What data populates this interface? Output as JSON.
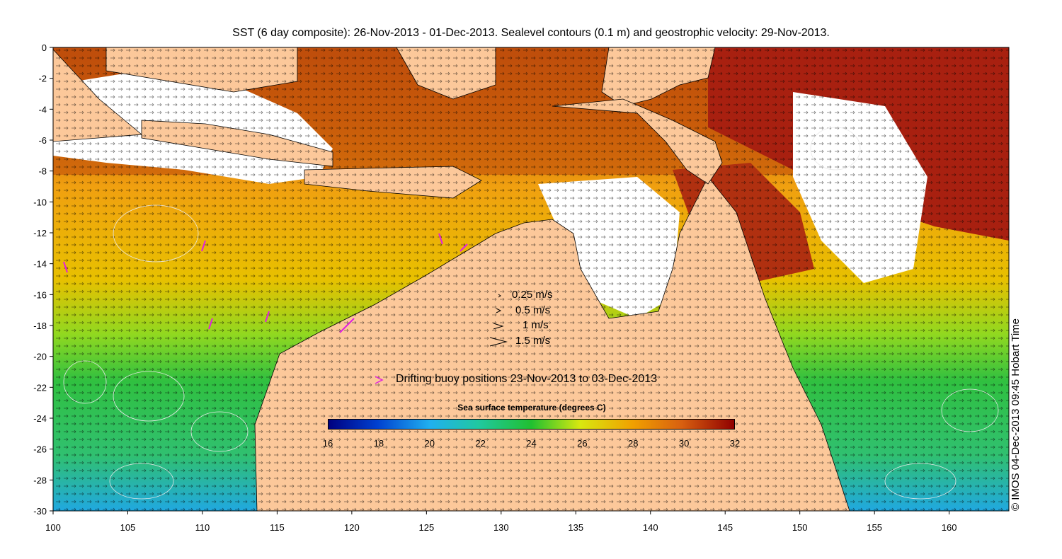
{
  "title": "SST (6 day composite): 26-Nov-2013 - 01-Dec-2013. Sealevel contours (0.1 m) and geostrophic velocity: 29-Nov-2013.",
  "credit": "© IMOS 04-Dec-2013 09:45 Hobart Time",
  "map": {
    "x_ticks": [
      "100",
      "105",
      "110",
      "115",
      "120",
      "125",
      "130",
      "135",
      "140",
      "145",
      "150",
      "155",
      "160"
    ],
    "y_ticks": [
      "0",
      "-2",
      "-4",
      "-6",
      "-8",
      "-10",
      "-12",
      "-14",
      "-16",
      "-18",
      "-20",
      "-22",
      "-24",
      "-26",
      "-28",
      "-30"
    ],
    "lon_range": [
      100,
      164
    ],
    "lat_range": [
      -30,
      0
    ]
  },
  "velocity_legend": [
    {
      "label": "0.25 m/s",
      "speed": 0.25
    },
    {
      "label": "0.5 m/s",
      "speed": 0.5
    },
    {
      "label": "1 m/s",
      "speed": 1
    },
    {
      "label": "1.5 m/s",
      "speed": 1.5
    }
  ],
  "buoy_legend": {
    "label": "Drifting buoy positions 23-Nov-2013 to 03-Dec-2013",
    "color": "#e020e0"
  },
  "colorbar": {
    "title": "Sea surface temperature (degrees C)",
    "ticks": [
      "16",
      "18",
      "20",
      "22",
      "24",
      "26",
      "28",
      "30",
      "32"
    ],
    "range": [
      16,
      32
    ]
  },
  "colors": {
    "land": "#fcc89a",
    "cloud": "#ffffff",
    "warm": "#c84a0a",
    "hot": "#a01c06",
    "mid": "#f0a010",
    "cool": "#30c040",
    "cold": "#20a0e0"
  }
}
